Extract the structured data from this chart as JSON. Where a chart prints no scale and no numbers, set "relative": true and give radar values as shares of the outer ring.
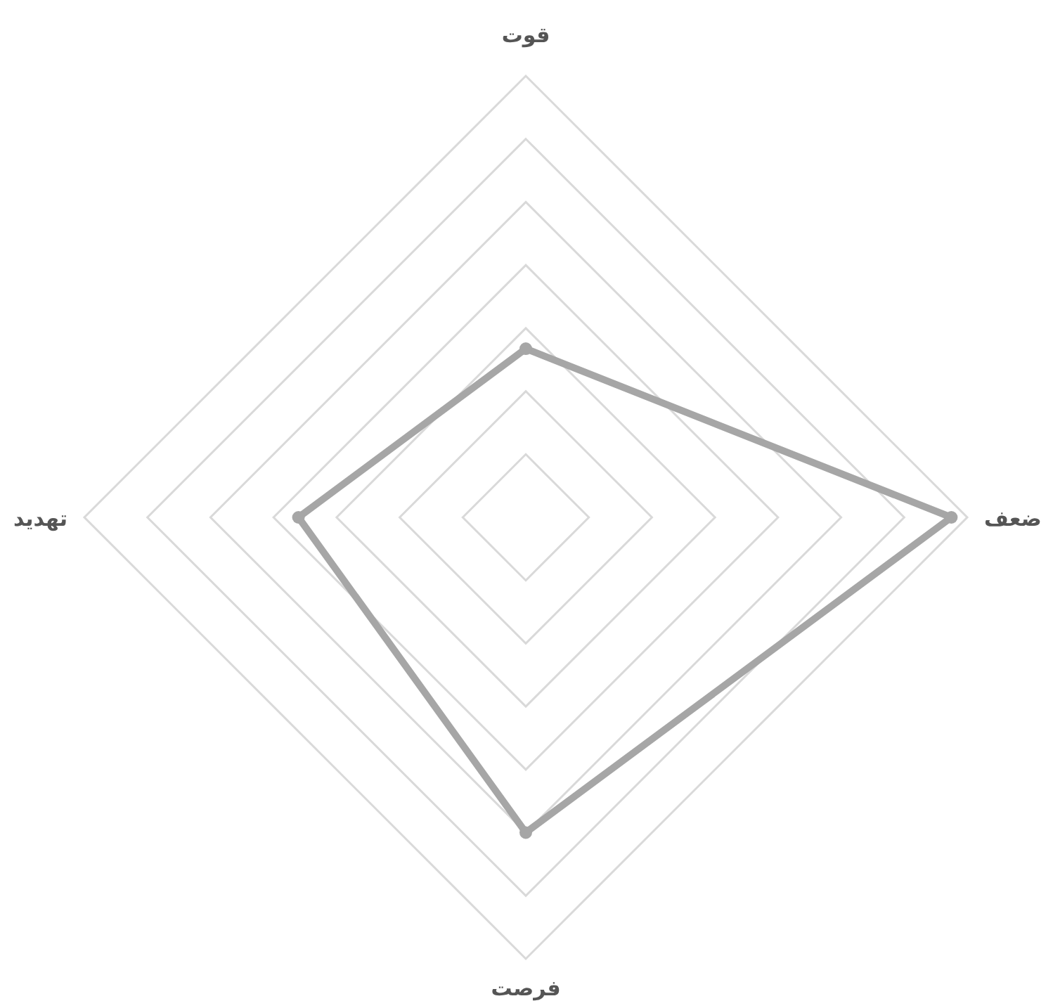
{
  "chart_data": {
    "type": "radar",
    "relative": true,
    "grid": true,
    "marker": "circle",
    "categories": [
      "قوت",
      "ضعف",
      "فرصت",
      "تهدید"
    ],
    "series": [
      {
        "color": "#a6a6a6",
        "values": [
          0.382,
          0.964,
          0.714,
          0.515
        ]
      }
    ]
  }
}
